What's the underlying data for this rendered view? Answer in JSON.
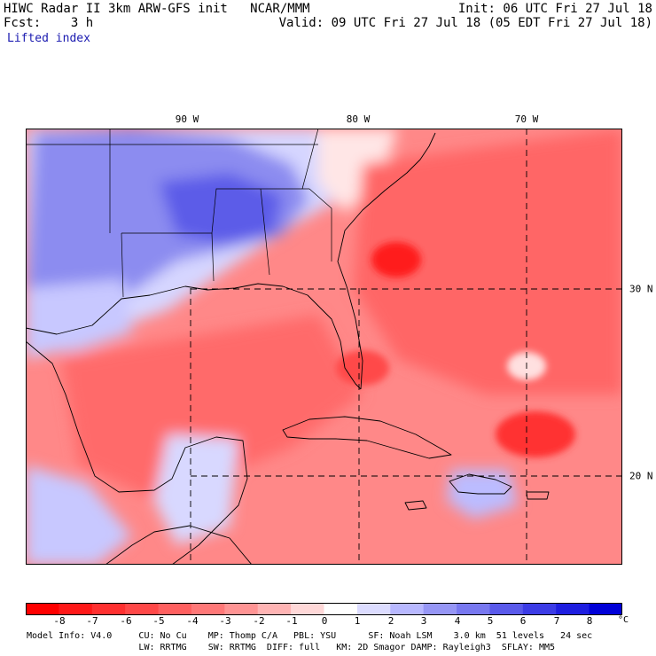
{
  "header": {
    "line1_left": "HIWC Radar II 3km ARW-GFS init   NCAR/MMM",
    "line2_left": "Fcst:    3 h",
    "line1_right": "Init: 06 UTC Fri 27 Jul 18",
    "line2_right": "Valid: 09 UTC Fri 27 Jul 18 (05 EDT Fri 27 Jul 18)",
    "field": "Lifted index"
  },
  "grid_labels": {
    "lon": [
      "90 W",
      "80 W",
      "70 W"
    ],
    "lat": [
      "30 N",
      "20 N"
    ]
  },
  "colorbar": {
    "ticks": [
      "-8",
      "-7",
      "-6",
      "-5",
      "-4",
      "-3",
      "-2",
      "-1",
      "0",
      "1",
      "2",
      "3",
      "4",
      "5",
      "6",
      "7",
      "8"
    ],
    "unit": "°C",
    "colors": [
      "#ff0000",
      "#ff1818",
      "#ff3030",
      "#ff4848",
      "#ff6060",
      "#ff7878",
      "#ff9494",
      "#ffb4b4",
      "#ffd8d8",
      "#ffffff",
      "#dcdcff",
      "#b8b8ff",
      "#9696f5",
      "#7878f0",
      "#5a5aeb",
      "#3c3ce6",
      "#1e1ee0",
      "#0000d8"
    ]
  },
  "footer": {
    "line1": "Model Info: V4.0     CU: No Cu    MP: Thomp C/A   PBL: YSU      SF: Noah LSM    3.0 km  51 levels   24 sec",
    "line2": "                     LW: RRTMG    SW: RRTMG  DIFF: full   KM: 2D Smagor DAMP: Rayleigh3  SFLAY: MM5"
  }
}
